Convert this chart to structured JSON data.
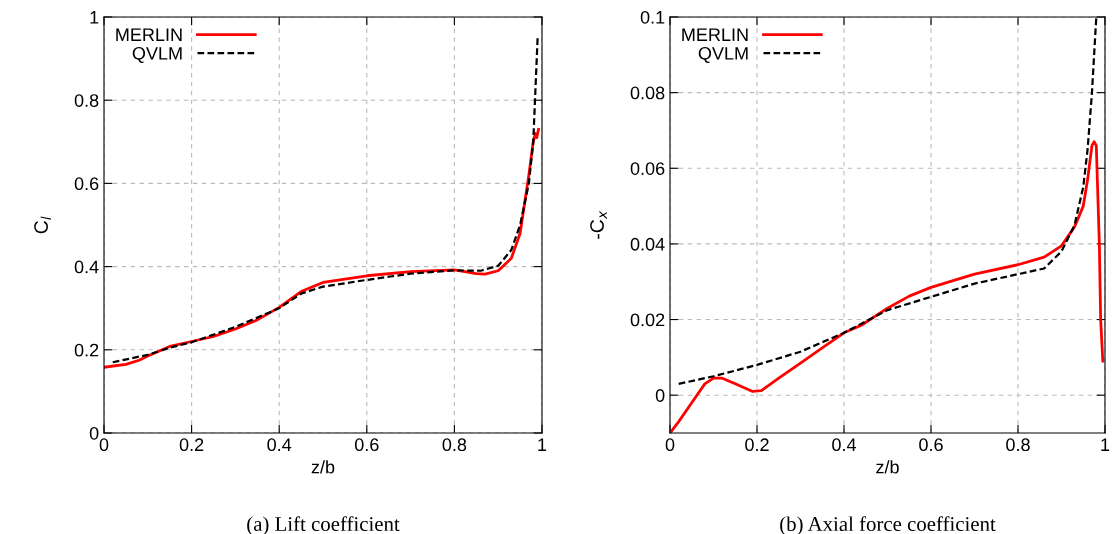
{
  "chart_data": [
    {
      "type": "line",
      "xlabel": "z/b",
      "ylabel": "C$_{l}$",
      "annotations": [
        "(a) Lift coefficient"
      ],
      "xlim": [
        0,
        1
      ],
      "ylim": [
        0,
        1
      ],
      "xticks": [
        0,
        0.2,
        0.4,
        0.6,
        0.8,
        1
      ],
      "yticks": [
        0,
        0.2,
        0.4,
        0.6,
        0.8,
        1
      ],
      "grid": true,
      "legend": "top left",
      "series": [
        {
          "name": "MERLIN",
          "color": "#ff0000",
          "line_style": "solid",
          "x": [
            0,
            0.05,
            0.08,
            0.1,
            0.15,
            0.2,
            0.25,
            0.3,
            0.35,
            0.4,
            0.45,
            0.5,
            0.6,
            0.7,
            0.8,
            0.85,
            0.87,
            0.9,
            0.93,
            0.95,
            0.97,
            0.98,
            0.985,
            0.988,
            0.992
          ],
          "values": [
            0.158,
            0.165,
            0.175,
            0.185,
            0.208,
            0.22,
            0.232,
            0.25,
            0.272,
            0.302,
            0.34,
            0.362,
            0.378,
            0.388,
            0.392,
            0.383,
            0.382,
            0.39,
            0.42,
            0.48,
            0.62,
            0.7,
            0.72,
            0.71,
            0.73
          ]
        },
        {
          "name": "QVLM",
          "color": "#000000",
          "line_style": "dashed",
          "x": [
            0.02,
            0.1,
            0.15,
            0.2,
            0.3,
            0.4,
            0.45,
            0.5,
            0.6,
            0.7,
            0.8,
            0.86,
            0.9,
            0.93,
            0.95,
            0.97,
            0.98,
            0.99
          ],
          "values": [
            0.17,
            0.188,
            0.205,
            0.218,
            0.255,
            0.3,
            0.335,
            0.352,
            0.368,
            0.383,
            0.391,
            0.39,
            0.402,
            0.44,
            0.5,
            0.6,
            0.7,
            0.95
          ]
        }
      ]
    },
    {
      "type": "line",
      "xlabel": "z/b",
      "ylabel": "-C$_{x}$",
      "annotations": [
        "(b) Axial force coefficient"
      ],
      "xlim": [
        0,
        1
      ],
      "ylim": [
        -0.01,
        0.1
      ],
      "xticks": [
        0,
        0.2,
        0.4,
        0.6,
        0.8,
        1
      ],
      "yticks": [
        0,
        0.02,
        0.04,
        0.06,
        0.08,
        0.1
      ],
      "grid": true,
      "legend": "top left",
      "series": [
        {
          "name": "MERLIN",
          "color": "#ff0000",
          "line_style": "solid",
          "x": [
            0,
            0.02,
            0.05,
            0.08,
            0.1,
            0.12,
            0.15,
            0.19,
            0.21,
            0.25,
            0.3,
            0.35,
            0.4,
            0.44,
            0.5,
            0.55,
            0.6,
            0.7,
            0.8,
            0.86,
            0.9,
            0.93,
            0.95,
            0.96,
            0.97,
            0.975,
            0.98,
            0.987,
            0.99,
            0.995
          ],
          "values": [
            -0.01,
            -0.007,
            -0.002,
            0.003,
            0.0045,
            0.0045,
            0.003,
            0.001,
            0.0012,
            0.0045,
            0.0085,
            0.0125,
            0.0165,
            0.0185,
            0.023,
            0.0262,
            0.0285,
            0.032,
            0.0345,
            0.0365,
            0.0395,
            0.0445,
            0.05,
            0.057,
            0.066,
            0.067,
            0.066,
            0.04,
            0.02,
            0.009
          ]
        },
        {
          "name": "QVLM",
          "color": "#000000",
          "line_style": "dashed",
          "x": [
            0.02,
            0.1,
            0.2,
            0.3,
            0.4,
            0.5,
            0.6,
            0.7,
            0.8,
            0.86,
            0.9,
            0.93,
            0.95,
            0.96,
            0.97,
            0.98
          ],
          "values": [
            0.003,
            0.005,
            0.008,
            0.0115,
            0.0165,
            0.0225,
            0.026,
            0.0295,
            0.032,
            0.0335,
            0.038,
            0.045,
            0.055,
            0.065,
            0.08,
            0.1
          ]
        }
      ]
    }
  ]
}
